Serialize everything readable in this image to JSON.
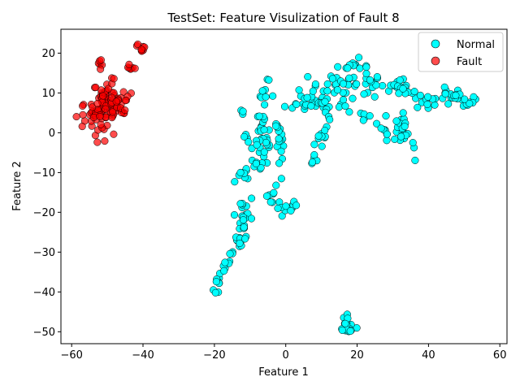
{
  "chart_data": {
    "type": "scatter",
    "title": "TestSet: Feature Visulization of Fault 8",
    "xlabel": "Feature 1",
    "ylabel": "Feature 2",
    "xlim": [
      -63,
      62
    ],
    "ylim": [
      -53,
      26
    ],
    "xticks": [
      -60,
      -40,
      -20,
      0,
      20,
      40,
      60
    ],
    "yticks": [
      -50,
      -40,
      -30,
      -20,
      -10,
      0,
      10,
      20
    ],
    "grid": false,
    "legend_position": "top-right",
    "series": [
      {
        "name": "Normal",
        "color": "#00ffff",
        "edge_color": "#000000",
        "clusters": [
          {
            "path": [
              [
                -21,
                -40
              ],
              [
                -16,
                -33
              ],
              [
                -14,
                -27
              ],
              [
                -12,
                -21
              ],
              [
                -10,
                -15
              ],
              [
                -8,
                -10
              ],
              [
                -7,
                -5
              ],
              [
                -6,
                -1
              ],
              [
                -7,
                4
              ],
              [
                -6,
                9
              ],
              [
                -5,
                14
              ]
            ],
            "n": 80,
            "spread": 0.9
          },
          {
            "path": [
              [
                -13,
                -30
              ],
              [
                -12,
                -25
              ],
              [
                -11,
                -20
              ],
              [
                -13,
                -15
              ],
              [
                -11,
                -10
              ]
            ],
            "n": 22,
            "spread": 0.8
          },
          {
            "path": [
              [
                -5,
                -18
              ],
              [
                -3,
                -14
              ],
              [
                -1,
                -9
              ],
              [
                -2,
                -4
              ],
              [
                -1,
                0
              ],
              [
                -3,
                2
              ]
            ],
            "n": 25,
            "spread": 0.8
          },
          {
            "path": [
              [
                -4,
                -17
              ],
              [
                -1,
                -19
              ],
              [
                1,
                -20
              ],
              [
                2,
                -17
              ]
            ],
            "n": 14,
            "spread": 0.9
          },
          {
            "path": [
              [
                1,
                6
              ],
              [
                4,
                7
              ],
              [
                7,
                8
              ],
              [
                10,
                7
              ],
              [
                11,
                5
              ]
            ],
            "n": 18,
            "spread": 1.0
          },
          {
            "path": [
              [
                4,
                12
              ],
              [
                6,
                10
              ],
              [
                8,
                9
              ],
              [
                10,
                11
              ]
            ],
            "n": 14,
            "spread": 1.2
          },
          {
            "path": [
              [
                7,
                -8
              ],
              [
                9,
                -5
              ],
              [
                10,
                -2
              ],
              [
                11,
                1
              ],
              [
                12,
                4
              ],
              [
                11,
                8
              ],
              [
                13,
                11
              ],
              [
                14,
                13
              ]
            ],
            "n": 28,
            "spread": 0.8
          },
          {
            "path": [
              [
                13,
                11
              ],
              [
                16,
                13
              ],
              [
                19,
                12
              ],
              [
                22,
                11
              ],
              [
                25,
                12
              ],
              [
                28,
                12
              ],
              [
                31,
                11
              ]
            ],
            "n": 34,
            "spread": 1.4
          },
          {
            "path": [
              [
                15,
                16
              ],
              [
                18,
                17
              ],
              [
                21,
                17
              ],
              [
                24,
                16
              ]
            ],
            "n": 14,
            "spread": 0.9
          },
          {
            "path": [
              [
                15,
                7
              ],
              [
                18,
                6
              ],
              [
                21,
                5
              ],
              [
                24,
                4
              ]
            ],
            "n": 10,
            "spread": 1.0
          },
          {
            "path": [
              [
                24,
                3
              ],
              [
                26,
                1
              ],
              [
                28,
                0
              ],
              [
                30,
                2
              ],
              [
                33,
                4
              ]
            ],
            "n": 18,
            "spread": 1.2
          },
          {
            "path": [
              [
                31,
                -3
              ],
              [
                33,
                -1
              ],
              [
                34,
                1
              ],
              [
                35,
                -2
              ],
              [
                36,
                -6
              ]
            ],
            "n": 16,
            "spread": 0.9
          },
          {
            "path": [
              [
                31,
                12
              ],
              [
                33,
                11
              ],
              [
                35,
                10
              ],
              [
                38,
                8
              ],
              [
                41,
                8
              ],
              [
                44,
                9
              ],
              [
                47,
                9
              ],
              [
                50,
                8
              ],
              [
                53,
                8
              ],
              [
                56,
                7
              ]
            ],
            "n": 48,
            "spread": 1.0
          },
          {
            "path": [
              [
                44,
                11
              ],
              [
                47,
                10
              ],
              [
                50,
                9
              ]
            ],
            "n": 10,
            "spread": 0.7
          },
          {
            "path": [
              [
                -12,
                -1
              ],
              [
                -10,
                -2
              ],
              [
                -8,
                -3
              ]
            ],
            "n": 6,
            "spread": 0.6
          },
          {
            "path": [
              [
                -12,
                5
              ],
              [
                -12,
                6
              ]
            ],
            "n": 3,
            "spread": 0.3
          },
          {
            "path": [
              [
                -13,
                -10
              ],
              [
                -12,
                -11
              ]
            ],
            "n": 3,
            "spread": 0.4
          },
          {
            "path": [
              [
                17,
                -49
              ]
            ],
            "n": 22,
            "spread": 0.9
          }
        ]
      },
      {
        "name": "Fault",
        "color": "#ff0000",
        "edge_color": "#000000",
        "clusters": [
          {
            "path": [
              [
                -56,
                6
              ],
              [
                -53,
                4
              ],
              [
                -51,
                7
              ],
              [
                -49,
                8
              ],
              [
                -48,
                6
              ],
              [
                -46,
                8
              ],
              [
                -53,
                10
              ],
              [
                -49,
                10
              ],
              [
                -51,
                1
              ],
              [
                -55,
                3
              ]
            ],
            "n": 125,
            "spread": 1.6
          },
          {
            "path": [
              [
                -52,
                17.5
              ]
            ],
            "n": 6,
            "spread": 0.5
          },
          {
            "path": [
              [
                -44,
                16
              ],
              [
                -43,
                16.5
              ]
            ],
            "n": 7,
            "spread": 0.6
          },
          {
            "path": [
              [
                -41,
                21.5
              ],
              [
                -40,
                21
              ]
            ],
            "n": 8,
            "spread": 0.5
          }
        ]
      }
    ]
  }
}
